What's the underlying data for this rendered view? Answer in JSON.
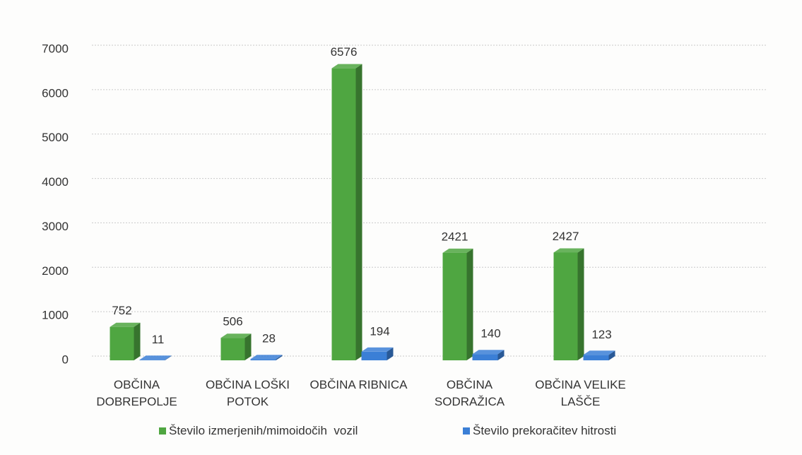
{
  "chart_data": {
    "type": "bar3d",
    "categories": [
      "OBČINA DOBREPOLJE",
      "OBČINA LOŠKI POTOK",
      "OBČINA RIBNICA",
      "OBČINA SODRAŽICA",
      "OBČINA VELIKE LAŠČE"
    ],
    "series": [
      {
        "name": "Število izmerjenih/mimoidočih  vozil",
        "color": "#4fa641",
        "values": [
          752,
          506,
          6576,
          2421,
          2427
        ]
      },
      {
        "name": "Število prekoračitev hitrosti",
        "color": "#3b7fd6",
        "values": [
          11,
          28,
          194,
          140,
          123
        ]
      }
    ],
    "ylim": [
      0,
      7000
    ],
    "yticks": [
      0,
      1000,
      2000,
      3000,
      4000,
      5000,
      6000,
      7000
    ],
    "grid": true,
    "legend": "bottom"
  }
}
